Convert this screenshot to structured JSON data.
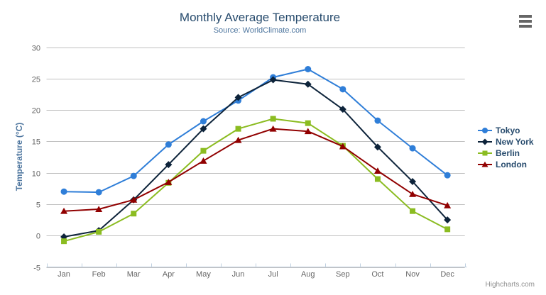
{
  "chart_data": {
    "type": "line",
    "title": "Monthly Average Temperature",
    "subtitle": "Source: WorldClimate.com",
    "categories": [
      "Jan",
      "Feb",
      "Mar",
      "Apr",
      "May",
      "Jun",
      "Jul",
      "Aug",
      "Sep",
      "Oct",
      "Nov",
      "Dec"
    ],
    "series": [
      {
        "name": "Tokyo",
        "color": "#2f7ed8",
        "marker": "circle",
        "values": [
          7.0,
          6.9,
          9.5,
          14.5,
          18.2,
          21.5,
          25.2,
          26.5,
          23.3,
          18.3,
          13.9,
          9.6
        ]
      },
      {
        "name": "New York",
        "color": "#0d233a",
        "marker": "diamond",
        "values": [
          -0.2,
          0.8,
          5.7,
          11.3,
          17.0,
          22.0,
          24.8,
          24.1,
          20.1,
          14.1,
          8.6,
          2.5
        ]
      },
      {
        "name": "Berlin",
        "color": "#8bbc21",
        "marker": "square",
        "values": [
          -0.9,
          0.6,
          3.5,
          8.4,
          13.5,
          17.0,
          18.6,
          17.9,
          14.3,
          9.0,
          3.9,
          1.0
        ]
      },
      {
        "name": "London",
        "color": "#910000",
        "marker": "triangle",
        "values": [
          3.9,
          4.2,
          5.7,
          8.5,
          11.9,
          15.2,
          17.0,
          16.6,
          14.2,
          10.3,
          6.6,
          4.8
        ]
      }
    ],
    "xlabel": "",
    "ylabel": "Temperature (°C)",
    "ylim": [
      -5,
      30
    ],
    "ytick_step": 5,
    "grid": "horizontal-only",
    "legend_position": "right"
  },
  "credits": "Highcharts.com",
  "controls": {
    "context_menu_icon": "hamburger-icon"
  },
  "colors": {
    "title": "#274b6d",
    "subtitle": "#4d759e",
    "axis_title": "#4d759e",
    "axis_label": "#666666",
    "grid_line": "#c0c0c0",
    "axis_line": "#c0d0e0",
    "legend_text": "#274b6d",
    "credits": "#909090",
    "menu_icon": "#666666",
    "background": "#ffffff"
  }
}
